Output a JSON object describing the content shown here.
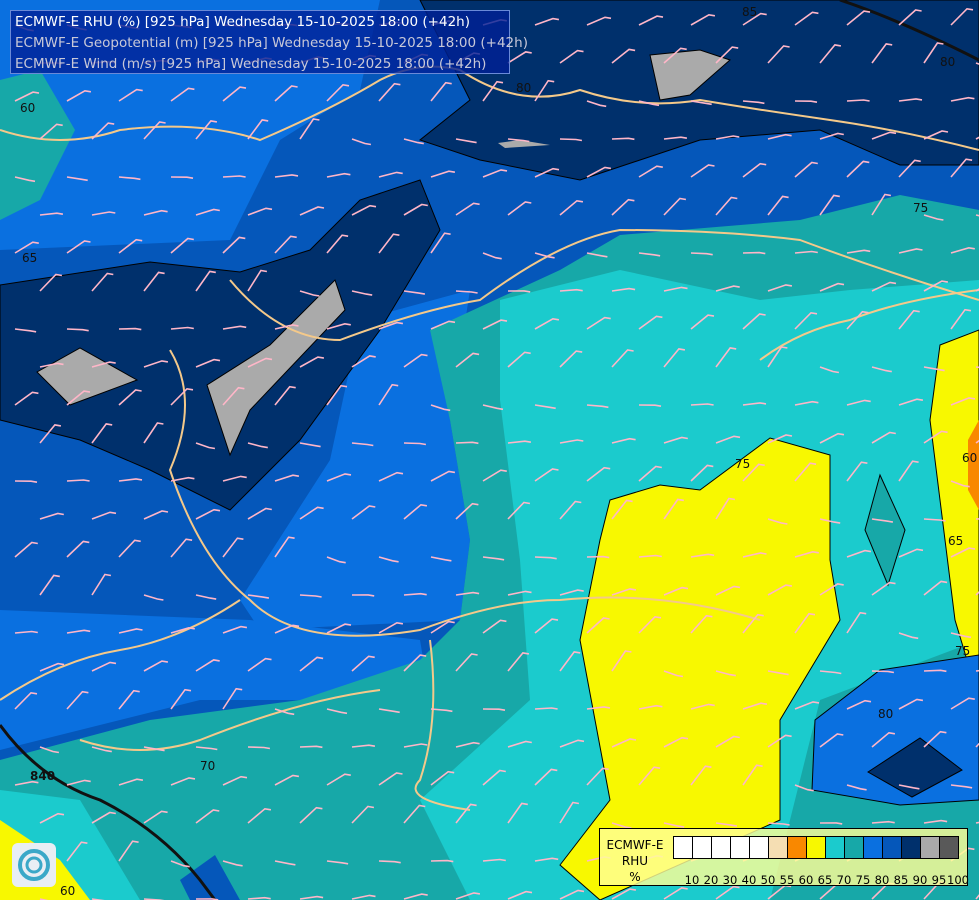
{
  "header": {
    "lines": [
      "ECMWF-E RHU (%) [925 hPa] Wednesday 15-10-2025 18:00 (+42h)",
      "ECMWF-E Geopotential (m) [925 hPa] Wednesday 15-10-2025 18:00 (+42h)",
      "ECMWF-E Wind (m/s) [925 hPa] Wednesday 15-10-2025 18:00 (+42h)"
    ]
  },
  "legend": {
    "title": [
      "ECMWF-E",
      "RHU",
      "%"
    ],
    "ticks": [
      "10",
      "20",
      "30",
      "40",
      "50",
      "55",
      "60",
      "65",
      "70",
      "75",
      "80",
      "85",
      "90",
      "95",
      "100"
    ],
    "colors": [
      "#ffffff",
      "#ffffff",
      "#ffffff",
      "#ffffff",
      "#ffffff",
      "#f5deb3",
      "#f98800",
      "#f8f800",
      "#1bcbcd",
      "#17a8a8",
      "#0a70e0",
      "#0557ba",
      "#00306c",
      "#aaaaaa",
      "#595959"
    ]
  },
  "contour_labels": [
    "85",
    "80",
    "80",
    "75",
    "75",
    "70",
    "65",
    "60",
    "60",
    "75",
    "80",
    "65",
    "840",
    "60"
  ],
  "colors": {
    "barb": "#ffb6c8",
    "border": "#f4c98a",
    "river": "#8a9ad0"
  },
  "logo": "ecmwf-swirl-logo"
}
